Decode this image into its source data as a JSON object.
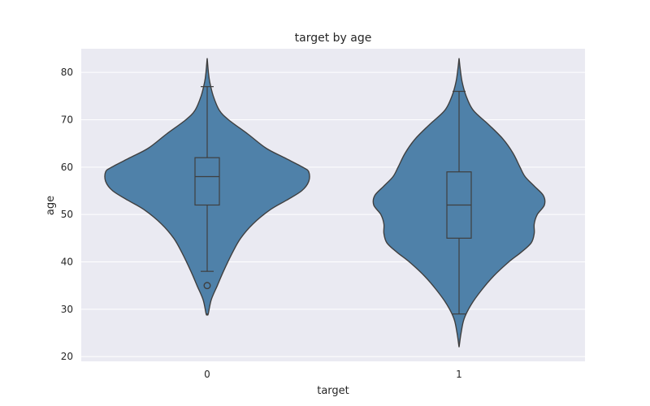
{
  "chart_data": {
    "type": "violin",
    "title": "target by age",
    "xlabel": "target",
    "ylabel": "age",
    "categories": [
      "0",
      "1"
    ],
    "ylim": [
      19,
      85
    ],
    "yticks": [
      20,
      30,
      40,
      50,
      60,
      70,
      80
    ],
    "grid": true,
    "colors": {
      "violin": "#4f81a9",
      "plot_background": "#eaeaf2",
      "outline": "#3f3f3f"
    },
    "groups": [
      {
        "category": "0",
        "range": [
          29,
          83
        ],
        "box": {
          "whisker_low": 38,
          "q1": 52,
          "median": 58,
          "q3": 62,
          "whisker_high": 77
        },
        "outliers": [
          35
        ],
        "density": [
          [
            29,
            0.01
          ],
          [
            32,
            0.04
          ],
          [
            35,
            0.1
          ],
          [
            38,
            0.16
          ],
          [
            42,
            0.25
          ],
          [
            45,
            0.33
          ],
          [
            48,
            0.45
          ],
          [
            51,
            0.62
          ],
          [
            53,
            0.78
          ],
          [
            55,
            0.93
          ],
          [
            57,
            1.0
          ],
          [
            59,
            1.0
          ],
          [
            60,
            0.94
          ],
          [
            62,
            0.76
          ],
          [
            64,
            0.58
          ],
          [
            67,
            0.4
          ],
          [
            70,
            0.21
          ],
          [
            72,
            0.12
          ],
          [
            75,
            0.06
          ],
          [
            78,
            0.025
          ],
          [
            80,
            0.012
          ],
          [
            83,
            0.0
          ]
        ]
      },
      {
        "category": "1",
        "range": [
          22,
          83
        ],
        "box": {
          "whisker_low": 29,
          "q1": 45,
          "median": 52,
          "q3": 59,
          "whisker_high": 76
        },
        "outliers": [],
        "density": [
          [
            22,
            0.0
          ],
          [
            25,
            0.02
          ],
          [
            28,
            0.05
          ],
          [
            31,
            0.12
          ],
          [
            34,
            0.22
          ],
          [
            37,
            0.34
          ],
          [
            40,
            0.49
          ],
          [
            42,
            0.61
          ],
          [
            44,
            0.71
          ],
          [
            46,
            0.74
          ],
          [
            48,
            0.74
          ],
          [
            50,
            0.77
          ],
          [
            52,
            0.84
          ],
          [
            54,
            0.83
          ],
          [
            56,
            0.74
          ],
          [
            58,
            0.65
          ],
          [
            60,
            0.6
          ],
          [
            63,
            0.53
          ],
          [
            66,
            0.43
          ],
          [
            69,
            0.29
          ],
          [
            72,
            0.14
          ],
          [
            75,
            0.07
          ],
          [
            78,
            0.03
          ],
          [
            81,
            0.01
          ],
          [
            83,
            0.0
          ]
        ]
      }
    ]
  }
}
